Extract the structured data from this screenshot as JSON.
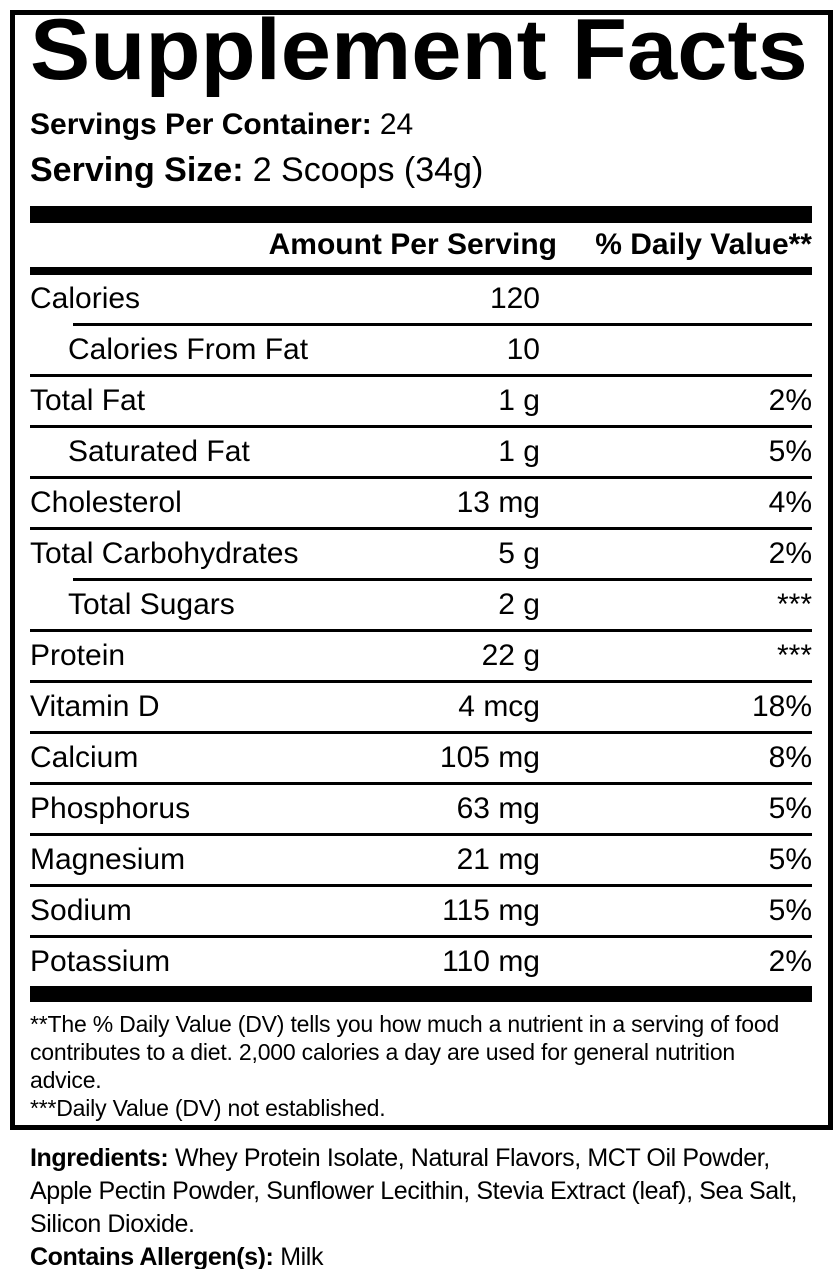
{
  "title": "Supplement Facts",
  "servings_per_container": {
    "label": "Servings Per Container:",
    "value": "24"
  },
  "serving_size": {
    "label": "Serving Size:",
    "value": "2 Scoops (34g)"
  },
  "table": {
    "header": {
      "amount": "Amount Per Serving",
      "dv": "% Daily Value**"
    },
    "rows": [
      {
        "name": "Calories",
        "amount": "120",
        "dv": "",
        "indent": false,
        "sep": "none"
      },
      {
        "name": "Calories From Fat",
        "amount": "10",
        "dv": "",
        "indent": true,
        "sep": "indent"
      },
      {
        "name": "Total Fat",
        "amount": "1 g",
        "dv": "2%",
        "indent": false,
        "sep": "full"
      },
      {
        "name": "Saturated Fat",
        "amount": "1 g",
        "dv": "5%",
        "indent": true,
        "sep": "full"
      },
      {
        "name": "Cholesterol",
        "amount": "13 mg",
        "dv": "4%",
        "indent": false,
        "sep": "full"
      },
      {
        "name": "Total Carbohydrates",
        "amount": "5 g",
        "dv": "2%",
        "indent": false,
        "sep": "full"
      },
      {
        "name": "Total Sugars",
        "amount": "2 g",
        "dv": "***",
        "indent": true,
        "sep": "indent"
      },
      {
        "name": "Protein",
        "amount": "22 g",
        "dv": "***",
        "indent": false,
        "sep": "full"
      },
      {
        "name": "Vitamin D",
        "amount": "4 mcg",
        "dv": "18%",
        "indent": false,
        "sep": "full"
      },
      {
        "name": "Calcium",
        "amount": "105 mg",
        "dv": "8%",
        "indent": false,
        "sep": "full"
      },
      {
        "name": "Phosphorus",
        "amount": "63 mg",
        "dv": "5%",
        "indent": false,
        "sep": "full"
      },
      {
        "name": "Magnesium",
        "amount": "21 mg",
        "dv": "5%",
        "indent": false,
        "sep": "full"
      },
      {
        "name": "Sodium",
        "amount": "115 mg",
        "dv": "5%",
        "indent": false,
        "sep": "full"
      },
      {
        "name": "Potassium",
        "amount": "110 mg",
        "dv": "2%",
        "indent": false,
        "sep": "full"
      }
    ]
  },
  "footnotes": {
    "daily_value": "**The % Daily Value (DV) tells you how much a nutrient in a serving of food contributes to a diet. 2,000 calories a day are used for general nutrition advice.",
    "not_established": "***Daily Value (DV) not established."
  },
  "ingredients": {
    "label": "Ingredients:",
    "text": "Whey Protein Isolate, Natural Flavors, MCT Oil Powder, Apple Pectin Powder, Sunflower Lecithin, Stevia Extract (leaf), Sea Salt, Silicon Dioxide."
  },
  "allergens": {
    "label": "Contains Allergen(s):",
    "value": "Milk"
  },
  "colors": {
    "ink": "#000000",
    "background": "#ffffff"
  }
}
